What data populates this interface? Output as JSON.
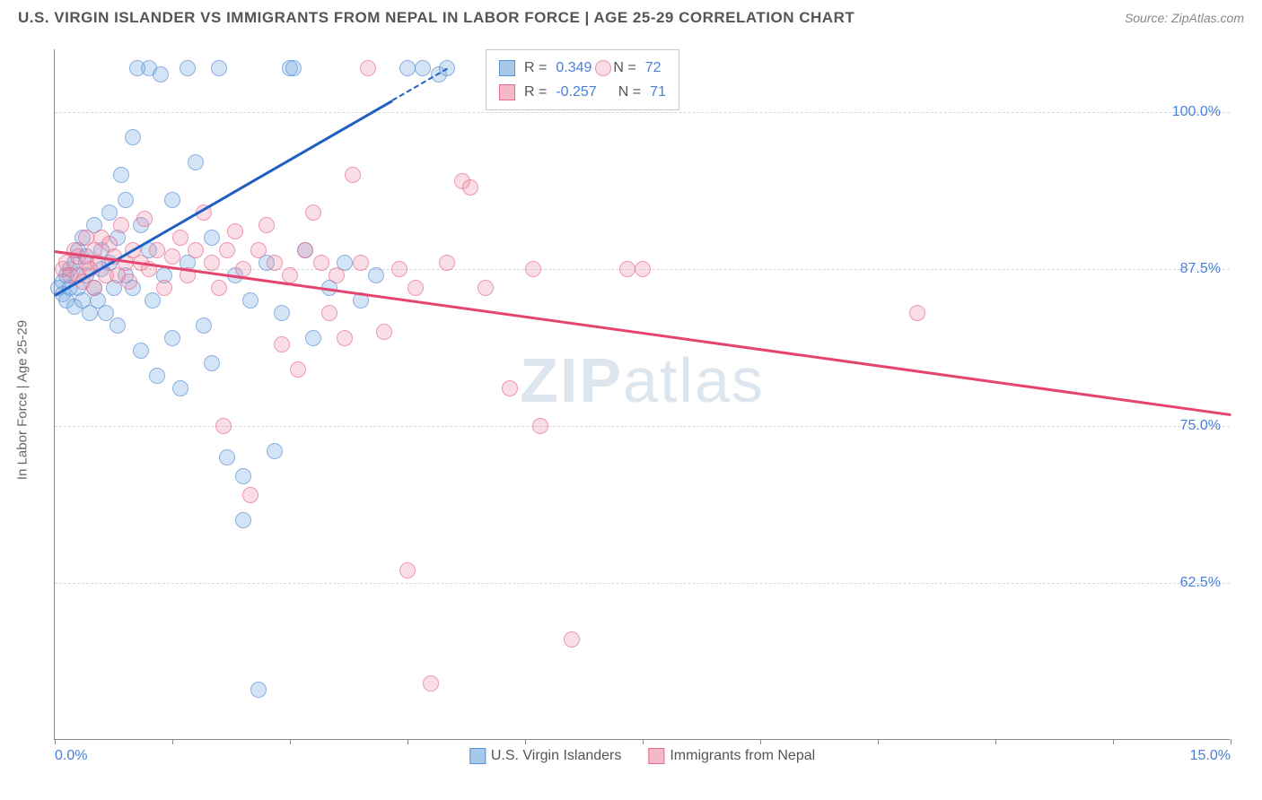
{
  "title": "U.S. VIRGIN ISLANDER VS IMMIGRANTS FROM NEPAL IN LABOR FORCE | AGE 25-29 CORRELATION CHART",
  "source": "Source: ZipAtlas.com",
  "ylabel": "In Labor Force | Age 25-29",
  "watermark": {
    "part1": "ZIP",
    "part2": "atlas"
  },
  "chart": {
    "type": "scatter",
    "background_color": "#ffffff",
    "grid_color": "#d8d8d8",
    "grid_dash": "4,4",
    "axis_color": "#888888",
    "label_color": "#4a7fd8",
    "text_color": "#555555",
    "xlim": [
      0,
      15
    ],
    "ylim": [
      50,
      105
    ],
    "xticks": [
      0,
      1.5,
      3,
      4.5,
      6,
      7.5,
      9,
      10.5,
      12,
      13.5,
      15
    ],
    "xtick_labels": {
      "0": "0.0%",
      "15": "15.0%"
    },
    "yticks": [
      62.5,
      75,
      87.5,
      100
    ],
    "ytick_labels": [
      "62.5%",
      "75.0%",
      "87.5%",
      "100.0%"
    ],
    "marker_radius": 9,
    "marker_opacity": 0.55,
    "line_width": 2.5,
    "series": [
      {
        "name": "U.S. Virgin Islanders",
        "fill_color": "#a8c8ea",
        "stroke_color": "#5a8fd0",
        "line_color": "#1f5fc4",
        "R": "0.349",
        "N": "72",
        "trend": {
          "x1": 0,
          "y1": 85.5,
          "x2": 5.0,
          "y2": 103.5,
          "dash_from_x": 4.3
        },
        "points": [
          [
            0.05,
            86
          ],
          [
            0.1,
            86.5
          ],
          [
            0.1,
            85.5
          ],
          [
            0.15,
            87
          ],
          [
            0.15,
            85
          ],
          [
            0.2,
            86
          ],
          [
            0.2,
            87.5
          ],
          [
            0.25,
            88
          ],
          [
            0.25,
            84.5
          ],
          [
            0.3,
            86
          ],
          [
            0.3,
            89
          ],
          [
            0.35,
            85
          ],
          [
            0.35,
            90
          ],
          [
            0.4,
            87
          ],
          [
            0.4,
            88.5
          ],
          [
            0.45,
            84
          ],
          [
            0.5,
            86
          ],
          [
            0.5,
            91
          ],
          [
            0.55,
            85
          ],
          [
            0.6,
            87.5
          ],
          [
            0.6,
            89
          ],
          [
            0.65,
            84
          ],
          [
            0.7,
            88
          ],
          [
            0.7,
            92
          ],
          [
            0.75,
            86
          ],
          [
            0.8,
            83
          ],
          [
            0.8,
            90
          ],
          [
            0.85,
            95
          ],
          [
            0.9,
            87
          ],
          [
            0.9,
            93
          ],
          [
            1.0,
            86
          ],
          [
            1.0,
            98
          ],
          [
            1.05,
            103.5
          ],
          [
            1.1,
            81
          ],
          [
            1.1,
            91
          ],
          [
            1.2,
            89
          ],
          [
            1.2,
            103.5
          ],
          [
            1.25,
            85
          ],
          [
            1.3,
            79
          ],
          [
            1.35,
            103
          ],
          [
            1.4,
            87
          ],
          [
            1.5,
            82
          ],
          [
            1.5,
            93
          ],
          [
            1.6,
            78
          ],
          [
            1.7,
            103.5
          ],
          [
            1.7,
            88
          ],
          [
            1.8,
            96
          ],
          [
            1.9,
            83
          ],
          [
            2.0,
            90
          ],
          [
            2.0,
            80
          ],
          [
            2.1,
            103.5
          ],
          [
            2.2,
            72.5
          ],
          [
            2.3,
            87
          ],
          [
            2.4,
            67.5
          ],
          [
            2.4,
            71
          ],
          [
            2.5,
            85
          ],
          [
            2.6,
            54
          ],
          [
            2.7,
            88
          ],
          [
            2.8,
            73
          ],
          [
            2.9,
            84
          ],
          [
            3.0,
            103.5
          ],
          [
            3.05,
            103.5
          ],
          [
            3.2,
            89
          ],
          [
            3.3,
            82
          ],
          [
            3.5,
            86
          ],
          [
            3.7,
            88
          ],
          [
            3.9,
            85
          ],
          [
            4.1,
            87
          ],
          [
            4.5,
            103.5
          ],
          [
            4.7,
            103.5
          ],
          [
            4.9,
            103
          ],
          [
            5.0,
            103.5
          ]
        ]
      },
      {
        "name": "Immigrants from Nepal",
        "fill_color": "#f5b8c8",
        "stroke_color": "#e66a8f",
        "line_color": "#e6446f",
        "R": "-0.257",
        "N": "71",
        "trend": {
          "x1": 0,
          "y1": 89.0,
          "x2": 15,
          "y2": 76.0
        },
        "points": [
          [
            0.1,
            87.5
          ],
          [
            0.15,
            88
          ],
          [
            0.2,
            87
          ],
          [
            0.25,
            89
          ],
          [
            0.3,
            87
          ],
          [
            0.3,
            88.5
          ],
          [
            0.35,
            86.5
          ],
          [
            0.4,
            88
          ],
          [
            0.4,
            90
          ],
          [
            0.45,
            87.5
          ],
          [
            0.5,
            89
          ],
          [
            0.5,
            86
          ],
          [
            0.55,
            88
          ],
          [
            0.6,
            90
          ],
          [
            0.65,
            87
          ],
          [
            0.7,
            89.5
          ],
          [
            0.75,
            88.5
          ],
          [
            0.8,
            87
          ],
          [
            0.85,
            91
          ],
          [
            0.9,
            88
          ],
          [
            0.95,
            86.5
          ],
          [
            1.0,
            89
          ],
          [
            1.1,
            88
          ],
          [
            1.15,
            91.5
          ],
          [
            1.2,
            87.5
          ],
          [
            1.3,
            89
          ],
          [
            1.4,
            86
          ],
          [
            1.5,
            88.5
          ],
          [
            1.6,
            90
          ],
          [
            1.7,
            87
          ],
          [
            1.8,
            89
          ],
          [
            1.9,
            92
          ],
          [
            2.0,
            88
          ],
          [
            2.1,
            86
          ],
          [
            2.15,
            75
          ],
          [
            2.2,
            89
          ],
          [
            2.3,
            90.5
          ],
          [
            2.4,
            87.5
          ],
          [
            2.5,
            69.5
          ],
          [
            2.6,
            89
          ],
          [
            2.7,
            91
          ],
          [
            2.8,
            88
          ],
          [
            2.9,
            81.5
          ],
          [
            3.0,
            87
          ],
          [
            3.1,
            79.5
          ],
          [
            3.2,
            89
          ],
          [
            3.3,
            92
          ],
          [
            3.4,
            88
          ],
          [
            3.5,
            84
          ],
          [
            3.6,
            87
          ],
          [
            3.7,
            82
          ],
          [
            3.8,
            95
          ],
          [
            3.9,
            88
          ],
          [
            4.0,
            103.5
          ],
          [
            4.2,
            82.5
          ],
          [
            4.4,
            87.5
          ],
          [
            4.5,
            63.5
          ],
          [
            4.6,
            86
          ],
          [
            4.8,
            54.5
          ],
          [
            5.0,
            88
          ],
          [
            5.2,
            94.5
          ],
          [
            5.3,
            94
          ],
          [
            5.5,
            86
          ],
          [
            5.8,
            78
          ],
          [
            6.1,
            87.5
          ],
          [
            6.2,
            75
          ],
          [
            6.6,
            58
          ],
          [
            7.0,
            103.5
          ],
          [
            7.3,
            87.5
          ],
          [
            7.5,
            87.5
          ],
          [
            11.0,
            84
          ]
        ]
      }
    ]
  },
  "legend_box": {
    "rows": [
      {
        "r_label": "R =",
        "n_label": "N ="
      },
      {
        "r_label": "R =",
        "n_label": "N ="
      }
    ]
  }
}
